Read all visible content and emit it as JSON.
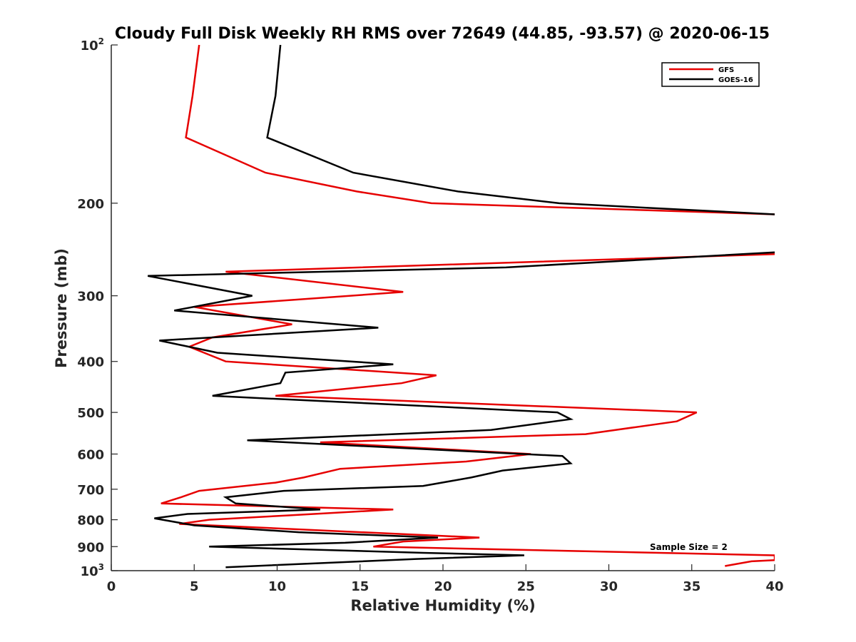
{
  "chart_data": {
    "type": "line",
    "title": "Cloudy Full Disk Weekly RH RMS over 72649 (44.85, -93.57) @ 2020-06-15",
    "xlabel": "Relative Humidity (%)",
    "ylabel": "Pressure (mb)",
    "xlim": [
      0,
      40
    ],
    "ylim": [
      100,
      1000
    ],
    "y_scale": "log",
    "y_reversed": true,
    "x_ticks": [
      "0",
      "5",
      "10",
      "15",
      "20",
      "25",
      "30",
      "35",
      "40"
    ],
    "y_ticks": [
      {
        "value": 100,
        "label": "10",
        "sup": "2"
      },
      {
        "value": 200,
        "label": "200",
        "sup": ""
      },
      {
        "value": 300,
        "label": "300",
        "sup": ""
      },
      {
        "value": 400,
        "label": "400",
        "sup": ""
      },
      {
        "value": 500,
        "label": "500",
        "sup": ""
      },
      {
        "value": 600,
        "label": "600",
        "sup": ""
      },
      {
        "value": 700,
        "label": "700",
        "sup": ""
      },
      {
        "value": 800,
        "label": "800",
        "sup": ""
      },
      {
        "value": 900,
        "label": "900",
        "sup": ""
      },
      {
        "value": 1000,
        "label": "10",
        "sup": "3"
      }
    ],
    "grid": false,
    "legend_position": "top-right",
    "annotation": "Sample Size = 2",
    "series": [
      {
        "name": "GFS",
        "color": "#e60000",
        "points": [
          [
            5.3,
            100
          ],
          [
            4.9,
            125
          ],
          [
            4.5,
            150
          ],
          [
            9.3,
            175
          ],
          [
            14.8,
            190
          ],
          [
            19.3,
            200
          ],
          [
            40,
            210
          ],
          [
            null,
            228
          ],
          [
            40,
            250
          ],
          [
            6.9,
            270
          ],
          [
            17.6,
            295
          ],
          [
            5.0,
            315
          ],
          [
            10.9,
            340
          ],
          [
            6.1,
            360
          ],
          [
            4.7,
            375
          ],
          [
            6.9,
            400
          ],
          [
            19.6,
            425
          ],
          [
            17.5,
            440
          ],
          [
            9.9,
            465
          ],
          [
            35.3,
            500
          ],
          [
            34.1,
            520
          ],
          [
            28.6,
            550
          ],
          [
            12.6,
            570
          ],
          [
            25.3,
            600
          ],
          [
            21.4,
            620
          ],
          [
            13.8,
            640
          ],
          [
            11.6,
            665
          ],
          [
            9.9,
            680
          ],
          [
            5.3,
            705
          ],
          [
            4.2,
            725
          ],
          [
            3.0,
            745
          ],
          [
            17.0,
            765
          ],
          [
            10.7,
            785
          ],
          [
            5.9,
            800
          ],
          [
            4.1,
            815
          ],
          [
            22.2,
            865
          ],
          [
            17.6,
            880
          ],
          [
            15.8,
            900
          ],
          [
            40,
            935
          ],
          [
            40,
            955
          ],
          [
            38.6,
            960
          ],
          [
            37.0,
            980
          ]
        ]
      },
      {
        "name": "GOES-16",
        "color": "#000000",
        "points": [
          [
            10.2,
            100
          ],
          [
            9.9,
            125
          ],
          [
            9.4,
            150
          ],
          [
            14.6,
            175
          ],
          [
            20.9,
            190
          ],
          [
            27.0,
            200
          ],
          [
            40,
            210
          ],
          [
            null,
            228
          ],
          [
            40,
            248
          ],
          [
            23.8,
            265
          ],
          [
            2.2,
            275
          ],
          [
            8.5,
            300
          ],
          [
            3.8,
            320
          ],
          [
            16.1,
            345
          ],
          [
            2.9,
            365
          ],
          [
            6.4,
            385
          ],
          [
            17.0,
            405
          ],
          [
            10.5,
            420
          ],
          [
            10.2,
            440
          ],
          [
            6.1,
            465
          ],
          [
            26.9,
            500
          ],
          [
            27.7,
            515
          ],
          [
            22.9,
            540
          ],
          [
            8.2,
            565
          ],
          [
            27.2,
            605
          ],
          [
            27.7,
            625
          ],
          [
            23.6,
            645
          ],
          [
            21.7,
            665
          ],
          [
            18.8,
            690
          ],
          [
            10.4,
            705
          ],
          [
            6.9,
            725
          ],
          [
            7.5,
            745
          ],
          [
            12.6,
            765
          ],
          [
            4.6,
            780
          ],
          [
            2.6,
            795
          ],
          [
            5.0,
            820
          ],
          [
            11.3,
            845
          ],
          [
            19.7,
            865
          ],
          [
            14.1,
            885
          ],
          [
            5.9,
            900
          ],
          [
            18.8,
            925
          ],
          [
            24.9,
            935
          ],
          [
            18.4,
            950
          ],
          [
            6.9,
            985
          ]
        ]
      }
    ]
  }
}
